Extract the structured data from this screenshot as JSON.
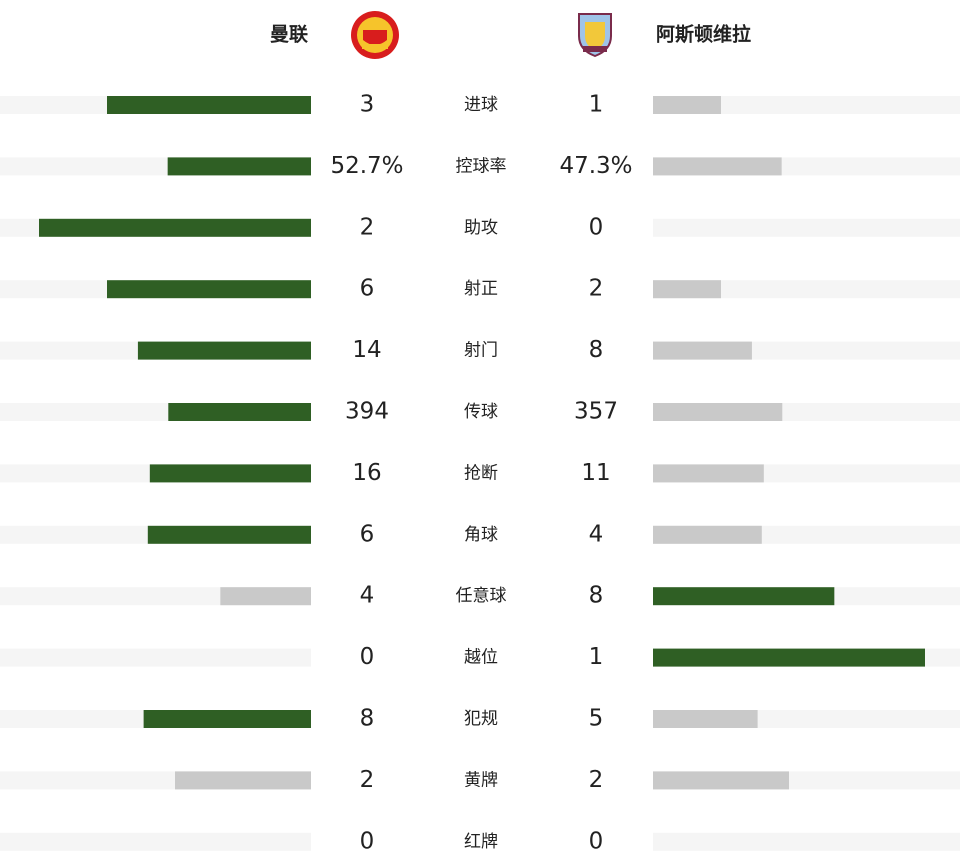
{
  "header": {
    "home": "曼联",
    "away": "阿斯顿维拉"
  },
  "rows": [
    {
      "label": "进球",
      "home": 3,
      "away": 1
    },
    {
      "label": "控球率",
      "home": {
        "value": 52.7,
        "label": "52.7%"
      },
      "away": {
        "value": 47.3,
        "label": "47.3%"
      }
    },
    {
      "label": "助攻",
      "home": 2,
      "away": 0
    },
    {
      "label": "射正",
      "home": 6,
      "away": 2
    },
    {
      "label": "射门",
      "home": 14,
      "away": 8
    },
    {
      "label": "传球",
      "home": 394,
      "away": 357
    },
    {
      "label": "抢断",
      "home": 16,
      "away": 11
    },
    {
      "label": "角球",
      "home": 6,
      "away": 4
    },
    {
      "label": "任意球",
      "home": 4,
      "away": 8
    },
    {
      "label": "越位",
      "home": 0,
      "away": 1
    },
    {
      "label": "犯规",
      "home": 8,
      "away": 5
    },
    {
      "label": "黄牌",
      "home": 2,
      "away": 2
    },
    {
      "label": "红牌",
      "home": 0,
      "away": 0
    }
  ]
}
